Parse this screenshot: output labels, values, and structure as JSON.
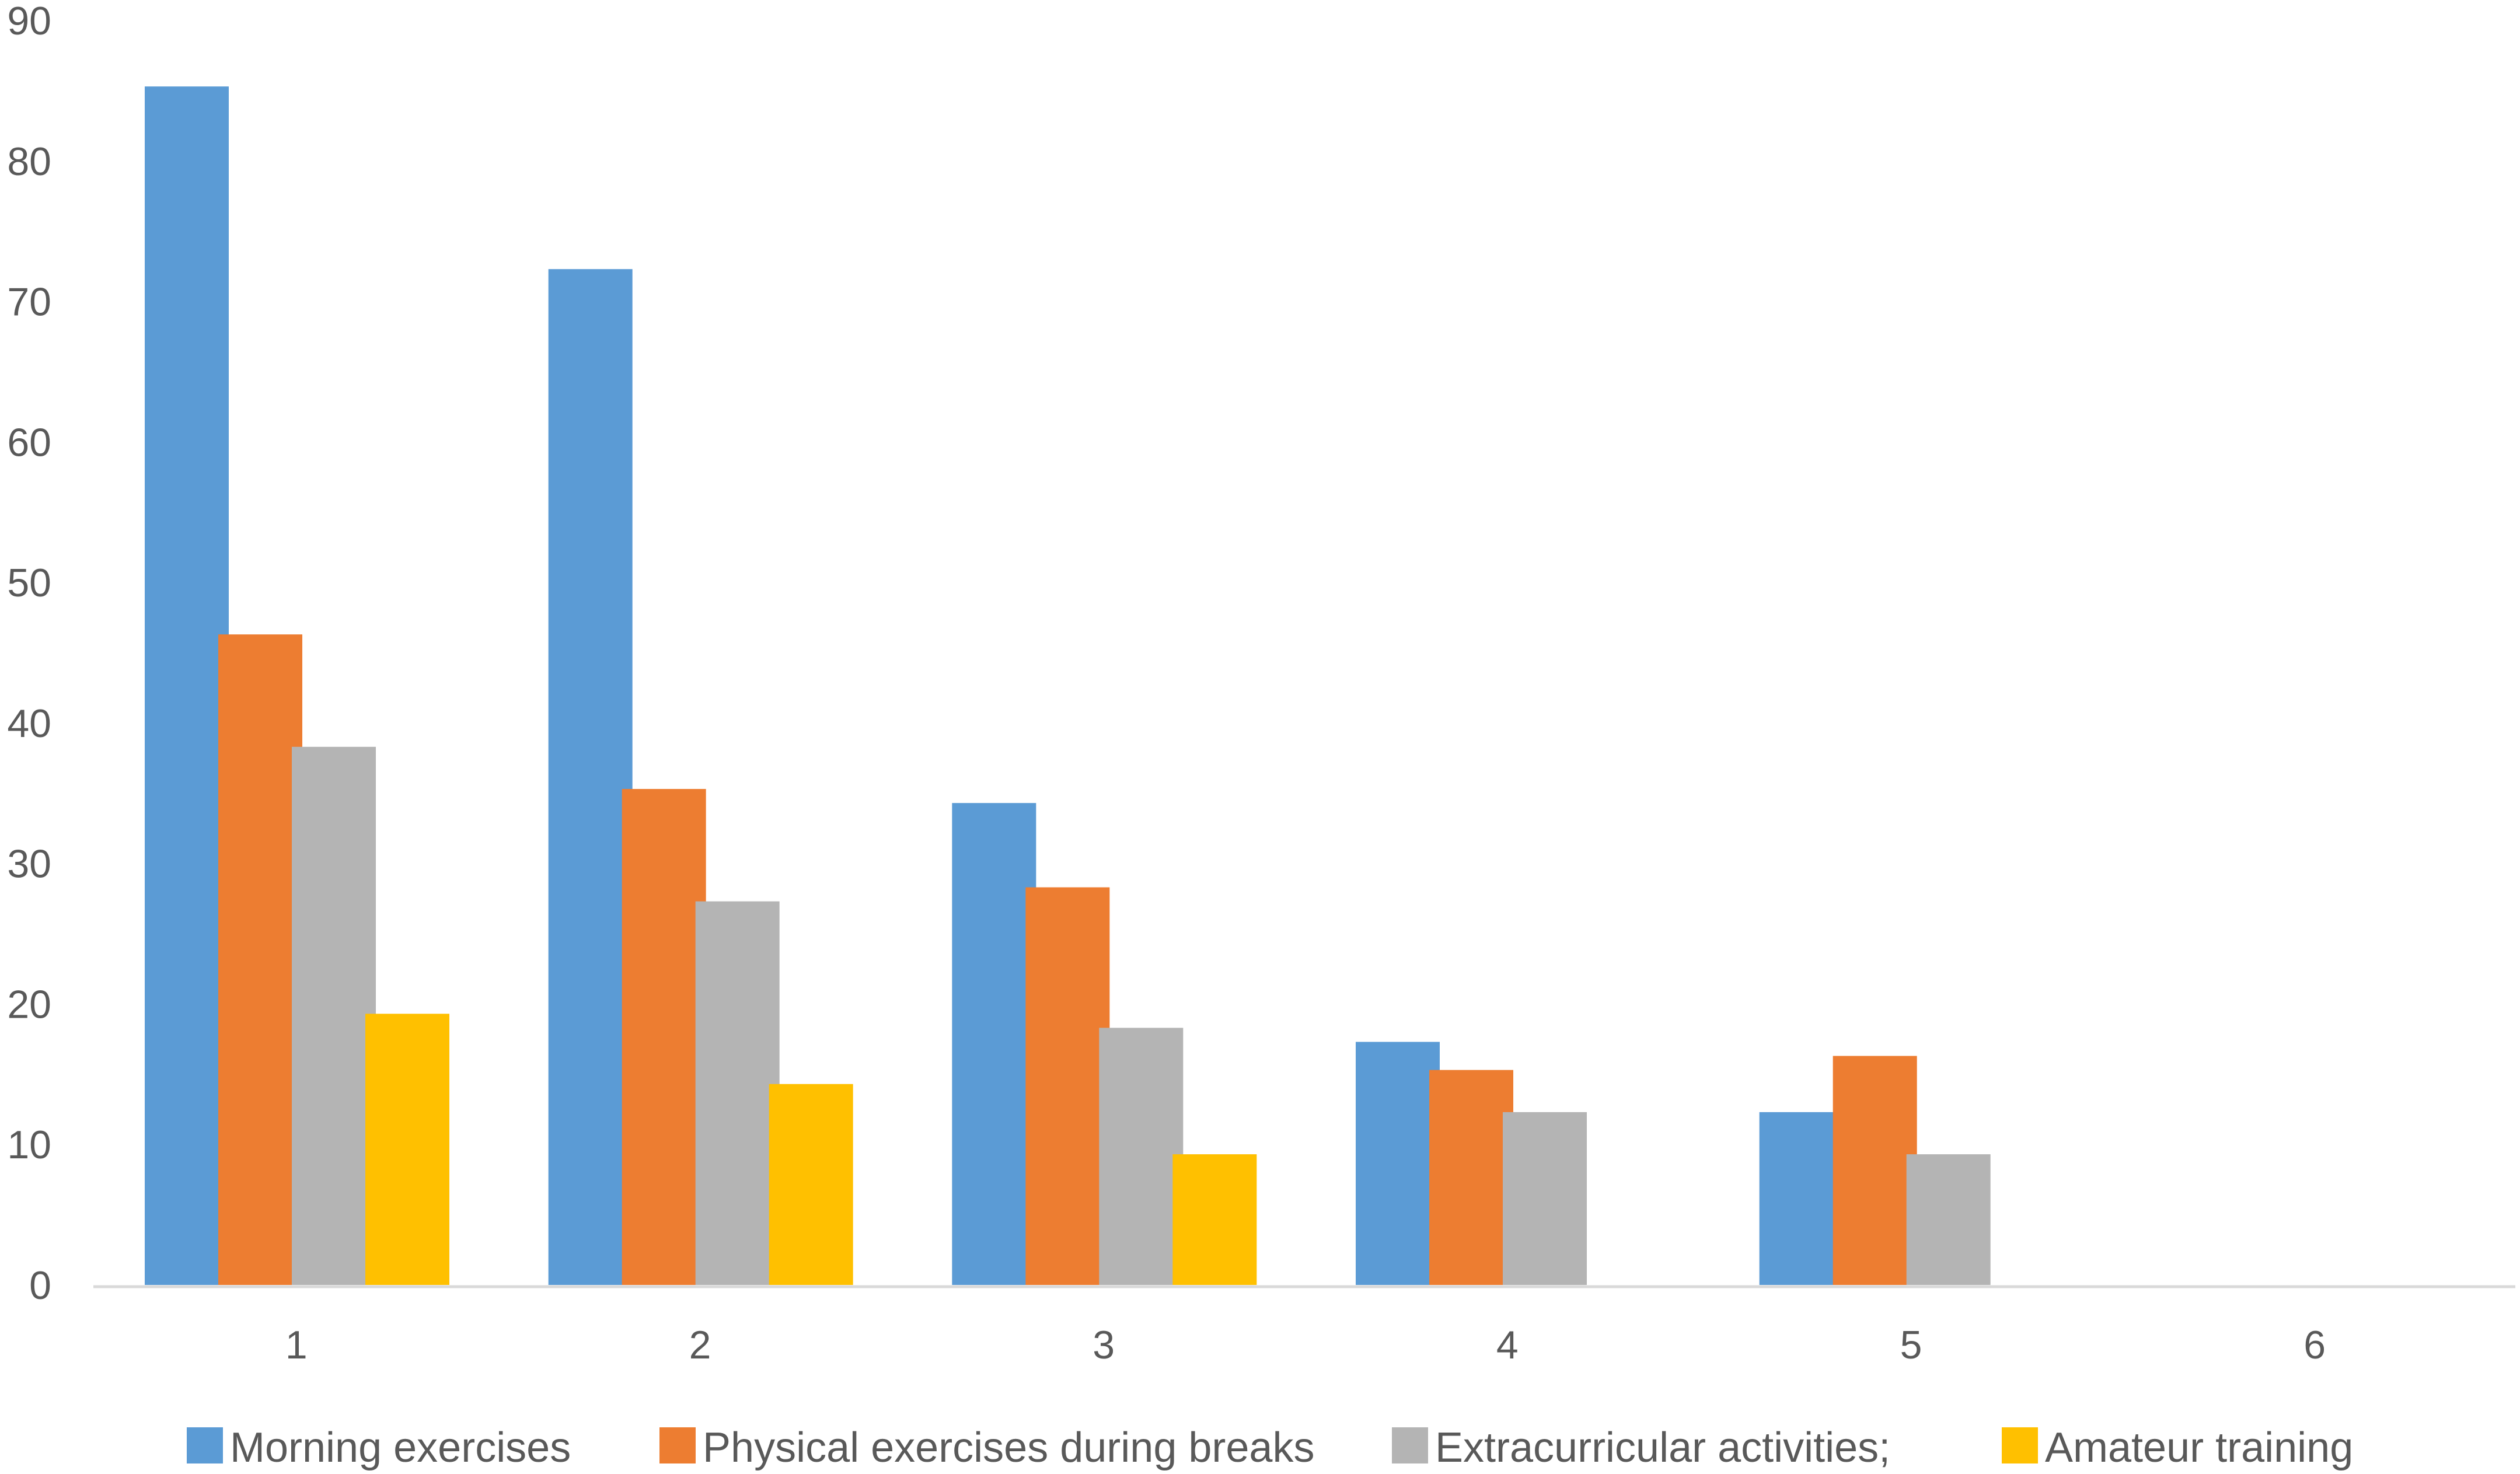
{
  "chart_data": {
    "type": "bar",
    "title": "",
    "xlabel": "",
    "ylabel": "",
    "categories": [
      "1",
      "2",
      "3",
      "4",
      "5",
      "6"
    ],
    "ylim": [
      0,
      90
    ],
    "yticks": [
      0,
      10,
      20,
      30,
      40,
      50,
      60,
      70,
      80,
      90
    ],
    "grid": false,
    "legend_position": "bottom",
    "series": [
      {
        "name": "Morning exercises",
        "color": "#5B9BD5",
        "values": [
          85.3,
          72.3,
          34.3,
          17.3,
          12.3,
          null
        ]
      },
      {
        "name": "Physical exercises during breaks",
        "color": "#ED7D31",
        "values": [
          46.3,
          35.3,
          28.3,
          15.3,
          16.3,
          null
        ]
      },
      {
        "name": "Extracurricular activities;",
        "color": "#B4B4B4",
        "values": [
          38.3,
          27.3,
          18.3,
          12.3,
          9.3,
          null
        ]
      },
      {
        "name": "Amateur training",
        "color": "#FFC000",
        "values": [
          19.3,
          14.3,
          9.3,
          null,
          null,
          null
        ]
      }
    ],
    "axis_color": "#D9D9D9",
    "text_color": "#595959"
  }
}
